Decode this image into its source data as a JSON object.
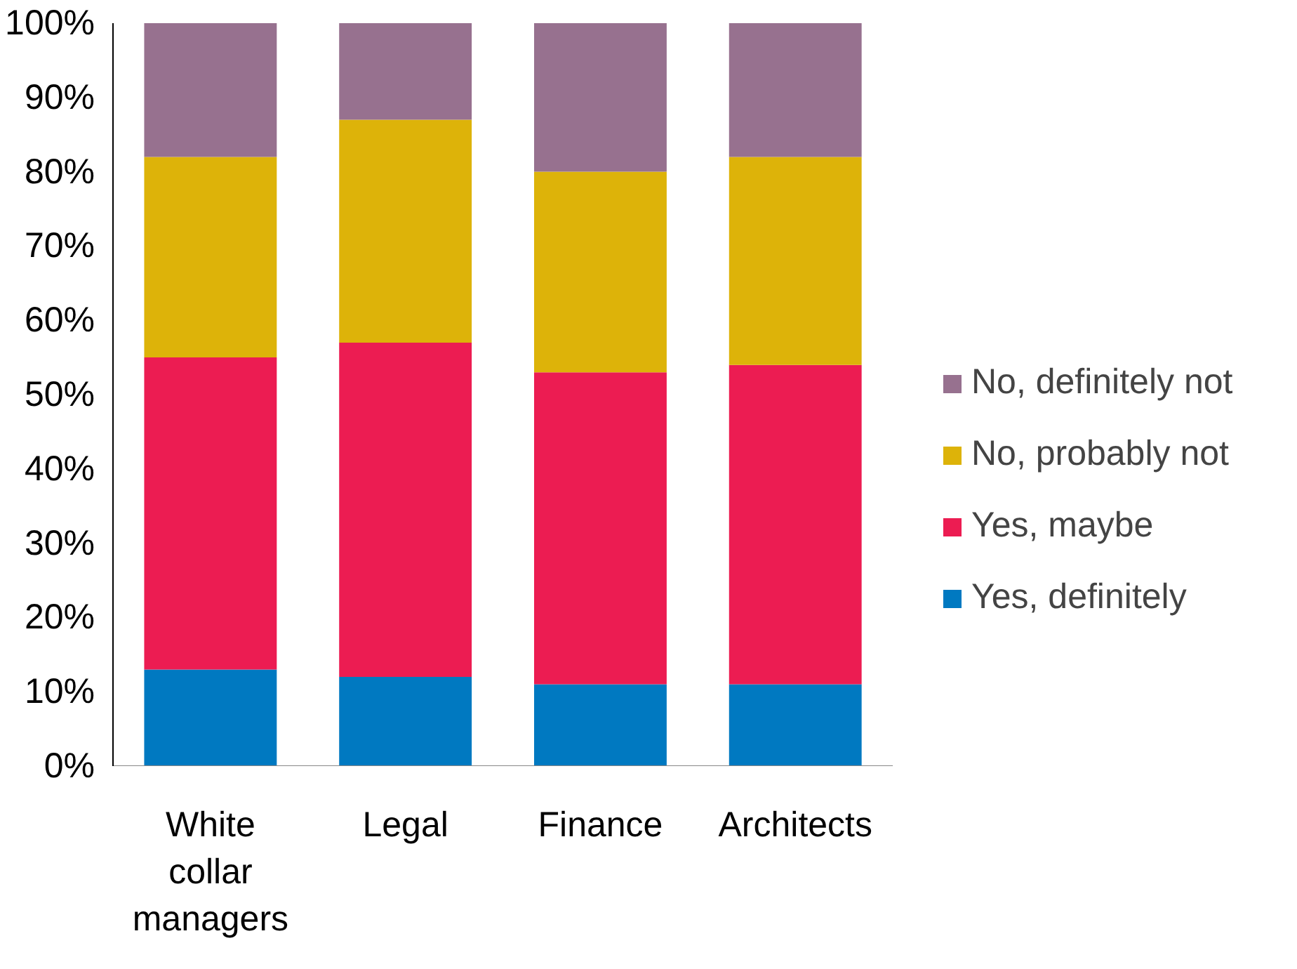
{
  "chart_data": {
    "type": "bar",
    "stacked": true,
    "categories": [
      "White collar managers",
      "Legal",
      "Finance",
      "Architects"
    ],
    "series": [
      {
        "name": "Yes, definitely",
        "color": "#0079c1",
        "values": [
          13,
          12,
          11,
          11
        ]
      },
      {
        "name": "Yes, maybe",
        "color": "#ec1c52",
        "values": [
          42,
          45,
          42,
          43
        ]
      },
      {
        "name": "No, probably not",
        "color": "#ddb309",
        "values": [
          27,
          30,
          27,
          28
        ]
      },
      {
        "name": "No, definitely not",
        "color": "#97718f",
        "values": [
          18,
          13,
          20,
          18
        ]
      }
    ],
    "ylim": [
      0,
      100
    ],
    "yticks": [
      {
        "value": 0,
        "label": "0%"
      },
      {
        "value": 10,
        "label": "10%"
      },
      {
        "value": 20,
        "label": "20%"
      },
      {
        "value": 30,
        "label": "30%"
      },
      {
        "value": 40,
        "label": "40%"
      },
      {
        "value": 50,
        "label": "50%"
      },
      {
        "value": 60,
        "label": "60%"
      },
      {
        "value": 70,
        "label": "70%"
      },
      {
        "value": 80,
        "label": "80%"
      },
      {
        "value": 90,
        "label": "90%"
      },
      {
        "value": 100,
        "label": "100%"
      }
    ],
    "grid": false,
    "legend": "right"
  }
}
